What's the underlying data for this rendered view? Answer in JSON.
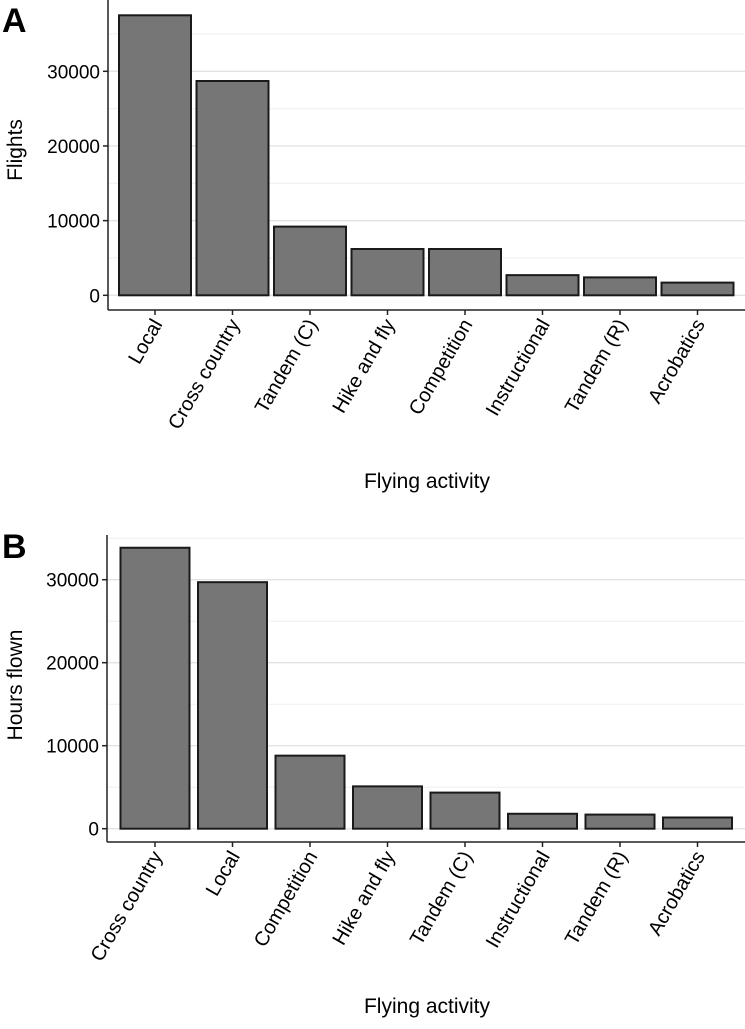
{
  "chart_data": [
    {
      "type": "bar",
      "panel_label": "A",
      "title": "",
      "xlabel": "Flying activity",
      "ylabel": "Flights",
      "categories": [
        "Local",
        "Cross country",
        "Tandem (C)",
        "Hike and fly",
        "Competition",
        "Instructional",
        "Tandem (R)",
        "Acrobatics"
      ],
      "values": [
        37500,
        28700,
        9200,
        6200,
        6200,
        2700,
        2400,
        1700
      ],
      "yticks": [
        0,
        10000,
        20000,
        30000
      ],
      "ytick_labels": [
        "0",
        "10000",
        "20000",
        "30000"
      ],
      "ylim": [
        0,
        39500
      ],
      "grid": true,
      "bar_fill": "#767676",
      "bar_stroke": "#1a1a1a"
    },
    {
      "type": "bar",
      "panel_label": "B",
      "title": "",
      "xlabel": "Flying activity",
      "ylabel": "Hours flown",
      "categories": [
        "Cross country",
        "Local",
        "Competition",
        "Hike and fly",
        "Tandem (C)",
        "Instructional",
        "Tandem (R)",
        "Acrobatics"
      ],
      "values": [
        33850,
        29700,
        8800,
        5100,
        4350,
        1800,
        1700,
        1350
      ],
      "yticks": [
        0,
        10000,
        20000,
        30000
      ],
      "ytick_labels": [
        "0",
        "10000",
        "20000",
        "30000"
      ],
      "ylim": [
        0,
        35500
      ],
      "grid": true,
      "bar_fill": "#767676",
      "bar_stroke": "#1a1a1a"
    }
  ]
}
